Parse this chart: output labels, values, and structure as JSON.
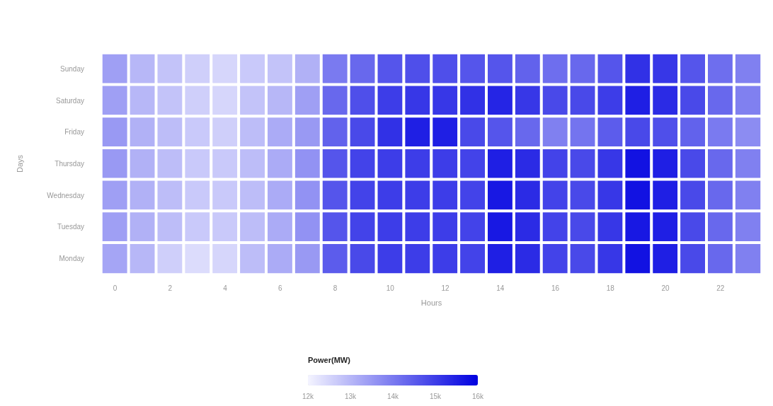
{
  "chart_data": {
    "type": "heatmap",
    "xlabel": "Hours",
    "ylabel": "Days",
    "clabel": "Power(MW)",
    "categories": [
      "0",
      null,
      "2",
      null,
      "4",
      null,
      "6",
      null,
      "8",
      null,
      "10",
      null,
      "12",
      null,
      "14",
      null,
      "16",
      null,
      "18",
      null,
      "20",
      null,
      "22",
      null
    ],
    "y_categories": [
      "Sunday",
      "Saturday",
      "Friday",
      "Thursday",
      "Wednesday",
      "Tuesday",
      "Monday"
    ],
    "cells": [
      [
        13400,
        13000,
        12800,
        12600,
        12500,
        12700,
        12800,
        13100,
        14000,
        14300,
        14600,
        14700,
        14700,
        14600,
        14600,
        14400,
        14200,
        14300,
        14600,
        15200,
        15100,
        14600,
        14200,
        13900
      ],
      [
        13400,
        13000,
        12800,
        12600,
        12500,
        12800,
        13000,
        13400,
        14300,
        14700,
        15000,
        15100,
        15100,
        15200,
        15400,
        15100,
        14800,
        14800,
        15000,
        15500,
        15300,
        14800,
        14300,
        13900
      ],
      [
        13500,
        13100,
        12900,
        12700,
        12600,
        12900,
        13200,
        13500,
        14400,
        14800,
        15200,
        15500,
        15500,
        14800,
        14600,
        14300,
        13900,
        14100,
        14500,
        14800,
        14700,
        14400,
        14000,
        13700
      ],
      [
        13500,
        13100,
        12900,
        12700,
        12700,
        12900,
        13200,
        13600,
        14600,
        14900,
        15000,
        15000,
        15000,
        14900,
        15500,
        15300,
        14900,
        14800,
        15100,
        15700,
        15500,
        14800,
        14300,
        13900
      ],
      [
        13400,
        13100,
        12900,
        12700,
        12700,
        12900,
        13200,
        13600,
        14600,
        14900,
        15000,
        15000,
        15000,
        14900,
        15600,
        15300,
        14900,
        14800,
        15100,
        15700,
        15500,
        14800,
        14300,
        13900
      ],
      [
        13400,
        13100,
        12900,
        12700,
        12700,
        12900,
        13200,
        13600,
        14600,
        14900,
        15000,
        15000,
        15000,
        14900,
        15600,
        15300,
        14900,
        14800,
        15100,
        15600,
        15500,
        14800,
        14300,
        13900
      ],
      [
        13300,
        13000,
        12600,
        12400,
        12500,
        12900,
        13200,
        13500,
        14500,
        14800,
        15000,
        15000,
        15000,
        14900,
        15500,
        15300,
        14900,
        14800,
        15100,
        15700,
        15500,
        14800,
        14300,
        13900
      ]
    ],
    "clim": [
      12000,
      16000
    ],
    "cticks": [
      {
        "value": 12000,
        "label": "12k"
      },
      {
        "value": 13000,
        "label": "13k"
      },
      {
        "value": 14000,
        "label": "14k"
      },
      {
        "value": 15000,
        "label": "15k"
      },
      {
        "value": 16000,
        "label": "16k"
      }
    ]
  }
}
